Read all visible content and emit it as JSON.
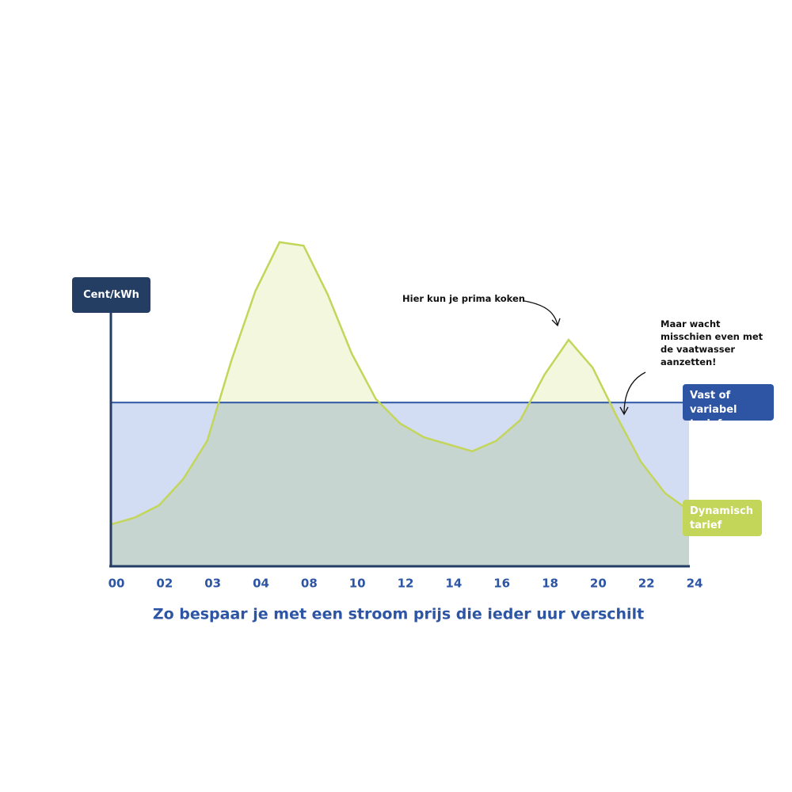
{
  "chart_data": {
    "type": "line",
    "title": "Zo bespaar je met een stroom prijs die ieder uur verschilt",
    "y_label": "Cent/kWh",
    "annotations": [
      "Hier kun je prima koken",
      "Maar wacht misschien even met de vaatwasser aanzetten!"
    ],
    "categories": [
      "00",
      null,
      "02",
      null,
      "03",
      null,
      "04",
      null,
      "08",
      null,
      "10",
      null,
      "12",
      null,
      "14",
      null,
      "16",
      null,
      "18",
      null,
      "20",
      null,
      "22",
      null,
      "24"
    ],
    "ylim": [
      0,
      100
    ],
    "series": [
      {
        "name": "Vast of variabel tarief",
        "color": "#2d55a4",
        "fill": "#d2dcf2",
        "values": [
          47,
          47,
          47,
          47,
          47,
          47,
          47,
          47,
          47,
          47,
          47,
          47,
          47,
          47,
          47,
          47,
          47,
          47,
          47,
          47,
          47,
          47,
          47,
          47,
          47
        ]
      },
      {
        "name": "Dynamisch tarief",
        "color": "#c3d65a",
        "fill": "#eef4d2",
        "values": [
          12,
          14,
          17.5,
          25,
          36,
          59,
          79,
          93,
          92,
          78,
          61,
          48,
          41,
          37,
          35,
          33,
          36,
          42,
          55,
          65,
          57,
          43,
          30,
          21,
          16
        ]
      }
    ]
  }
}
